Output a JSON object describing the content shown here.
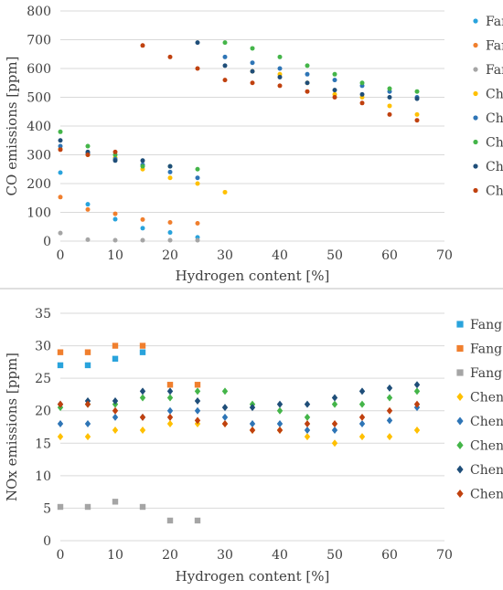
{
  "chart_data": [
    {
      "type": "scatter",
      "xlabel": "Hydrogen content [%]",
      "ylabel": "CO emissions [ppm]",
      "xlim": [
        0,
        70
      ],
      "ylim": [
        0,
        800
      ],
      "xticks": [
        0,
        10,
        20,
        30,
        40,
        50,
        60,
        70
      ],
      "yticks": [
        0,
        100,
        200,
        300,
        400,
        500,
        600,
        700,
        800
      ],
      "grid": "horizontal",
      "legend": "right",
      "marker": "circle",
      "series": [
        {
          "name": "Fang",
          "color": "#29a3dc",
          "points": [
            [
              0,
              238
            ],
            [
              5,
              128
            ],
            [
              10,
              76
            ],
            [
              15,
              45
            ],
            [
              20,
              30
            ],
            [
              25,
              13
            ]
          ]
        },
        {
          "name": "Fang",
          "color": "#f07f2e",
          "points": [
            [
              0,
              153
            ],
            [
              5,
              110
            ],
            [
              10,
              95
            ],
            [
              15,
              75
            ],
            [
              20,
              65
            ],
            [
              25,
              62
            ]
          ]
        },
        {
          "name": "Fang",
          "color": "#a5a5a5",
          "points": [
            [
              0,
              28
            ],
            [
              5,
              5
            ],
            [
              10,
              3
            ],
            [
              15,
              3
            ],
            [
              20,
              3
            ],
            [
              25,
              3
            ]
          ]
        },
        {
          "name": "Chen",
          "color": "#ffc000",
          "points": [
            [
              0,
              320
            ],
            [
              5,
              300
            ],
            [
              10,
              290
            ],
            [
              15,
              250
            ],
            [
              20,
              220
            ],
            [
              25,
              200
            ],
            [
              30,
              170
            ],
            [
              35,
              590
            ],
            [
              40,
              580
            ],
            [
              45,
              550
            ],
            [
              50,
              510
            ],
            [
              55,
              500
            ],
            [
              60,
              470
            ],
            [
              65,
              440
            ]
          ]
        },
        {
          "name": "Chen",
          "color": "#2e75b6",
          "points": [
            [
              0,
              330
            ],
            [
              5,
              305
            ],
            [
              10,
              285
            ],
            [
              15,
              265
            ],
            [
              20,
              240
            ],
            [
              25,
              220
            ],
            [
              30,
              640
            ],
            [
              35,
              620
            ],
            [
              40,
              600
            ],
            [
              45,
              580
            ],
            [
              50,
              560
            ],
            [
              55,
              540
            ],
            [
              60,
              520
            ],
            [
              65,
              500
            ]
          ]
        },
        {
          "name": "Chen",
          "color": "#44b549",
          "points": [
            [
              0,
              380
            ],
            [
              5,
              330
            ],
            [
              10,
              300
            ],
            [
              15,
              260
            ],
            [
              20,
              260
            ],
            [
              25,
              250
            ],
            [
              30,
              690
            ],
            [
              35,
              670
            ],
            [
              40,
              640
            ],
            [
              45,
              610
            ],
            [
              50,
              580
            ],
            [
              55,
              550
            ],
            [
              60,
              530
            ],
            [
              65,
              520
            ]
          ]
        },
        {
          "name": "Chen",
          "color": "#1f4e79",
          "points": [
            [
              0,
              350
            ],
            [
              5,
              310
            ],
            [
              10,
              280
            ],
            [
              15,
              280
            ],
            [
              20,
              260
            ],
            [
              25,
              690
            ],
            [
              30,
              610
            ],
            [
              35,
              590
            ],
            [
              40,
              570
            ],
            [
              45,
              550
            ],
            [
              50,
              525
            ],
            [
              55,
              510
            ],
            [
              60,
              500
            ],
            [
              65,
              495
            ]
          ]
        },
        {
          "name": "Chen",
          "color": "#c0410f",
          "points": [
            [
              0,
              318
            ],
            [
              5,
              300
            ],
            [
              10,
              310
            ],
            [
              15,
              680
            ],
            [
              20,
              640
            ],
            [
              25,
              600
            ],
            [
              30,
              560
            ],
            [
              35,
              550
            ],
            [
              40,
              540
            ],
            [
              45,
              520
            ],
            [
              50,
              500
            ],
            [
              55,
              480
            ],
            [
              60,
              440
            ],
            [
              65,
              420
            ]
          ]
        }
      ]
    },
    {
      "type": "scatter",
      "xlabel": "Hydrogen content [%]",
      "ylabel": "NOx emissions [ppm]",
      "xlim": [
        0,
        70
      ],
      "ylim": [
        0,
        35
      ],
      "xticks": [
        0,
        10,
        20,
        30,
        40,
        50,
        60,
        70
      ],
      "yticks": [
        0,
        5,
        10,
        15,
        20,
        25,
        30,
        35
      ],
      "grid": "horizontal",
      "legend": "right",
      "series": [
        {
          "name": "Fang",
          "color": "#29a3dc",
          "marker": "square",
          "points": [
            [
              0,
              27
            ],
            [
              5,
              27
            ],
            [
              10,
              28
            ],
            [
              15,
              29
            ]
          ]
        },
        {
          "name": "Fang",
          "color": "#f07f2e",
          "marker": "square",
          "points": [
            [
              0,
              29
            ],
            [
              5,
              29
            ],
            [
              10,
              30
            ],
            [
              15,
              30
            ],
            [
              20,
              24
            ],
            [
              25,
              24
            ]
          ]
        },
        {
          "name": "Fang",
          "color": "#a5a5a5",
          "marker": "square",
          "points": [
            [
              0,
              5.2
            ],
            [
              5,
              5.2
            ],
            [
              10,
              6
            ],
            [
              15,
              5.2
            ],
            [
              20,
              3.1
            ],
            [
              25,
              3.1
            ]
          ]
        },
        {
          "name": "Chen",
          "color": "#ffc000",
          "marker": "diamond",
          "points": [
            [
              0,
              16
            ],
            [
              5,
              16
            ],
            [
              10,
              17
            ],
            [
              15,
              17
            ],
            [
              20,
              18
            ],
            [
              25,
              18
            ],
            [
              30,
              18
            ],
            [
              35,
              17
            ],
            [
              40,
              17
            ],
            [
              45,
              16
            ],
            [
              50,
              15
            ],
            [
              55,
              16
            ],
            [
              60,
              16
            ],
            [
              65,
              17
            ]
          ]
        },
        {
          "name": "Chen",
          "color": "#2e75b6",
          "marker": "diamond",
          "points": [
            [
              0,
              18
            ],
            [
              5,
              18
            ],
            [
              10,
              19
            ],
            [
              15,
              19
            ],
            [
              20,
              20
            ],
            [
              25,
              20
            ],
            [
              30,
              19
            ],
            [
              35,
              18
            ],
            [
              40,
              18
            ],
            [
              45,
              17
            ],
            [
              50,
              17
            ],
            [
              55,
              18
            ],
            [
              60,
              18.5
            ],
            [
              65,
              20.5
            ]
          ]
        },
        {
          "name": "Chen",
          "color": "#44b549",
          "marker": "diamond",
          "points": [
            [
              0,
              20.5
            ],
            [
              5,
              21
            ],
            [
              10,
              21
            ],
            [
              15,
              22
            ],
            [
              20,
              22
            ],
            [
              25,
              23
            ],
            [
              30,
              23
            ],
            [
              35,
              21
            ],
            [
              40,
              20
            ],
            [
              45,
              19
            ],
            [
              50,
              21
            ],
            [
              55,
              21
            ],
            [
              60,
              22
            ],
            [
              65,
              23
            ]
          ]
        },
        {
          "name": "Chen",
          "color": "#1f4e79",
          "marker": "diamond",
          "points": [
            [
              0,
              21
            ],
            [
              5,
              21.5
            ],
            [
              10,
              21.5
            ],
            [
              15,
              23
            ],
            [
              20,
              23
            ],
            [
              25,
              21.5
            ],
            [
              30,
              20.5
            ],
            [
              35,
              20.5
            ],
            [
              40,
              21
            ],
            [
              45,
              21
            ],
            [
              50,
              22
            ],
            [
              55,
              23
            ],
            [
              60,
              23.5
            ],
            [
              65,
              24
            ]
          ]
        },
        {
          "name": "Chen",
          "color": "#c0410f",
          "marker": "diamond",
          "points": [
            [
              0,
              21
            ],
            [
              5,
              21
            ],
            [
              10,
              20
            ],
            [
              15,
              19
            ],
            [
              20,
              19
            ],
            [
              25,
              18.5
            ],
            [
              30,
              18
            ],
            [
              35,
              17
            ],
            [
              40,
              17
            ],
            [
              45,
              18
            ],
            [
              50,
              18
            ],
            [
              55,
              19
            ],
            [
              60,
              20
            ],
            [
              65,
              21
            ]
          ]
        }
      ]
    }
  ]
}
